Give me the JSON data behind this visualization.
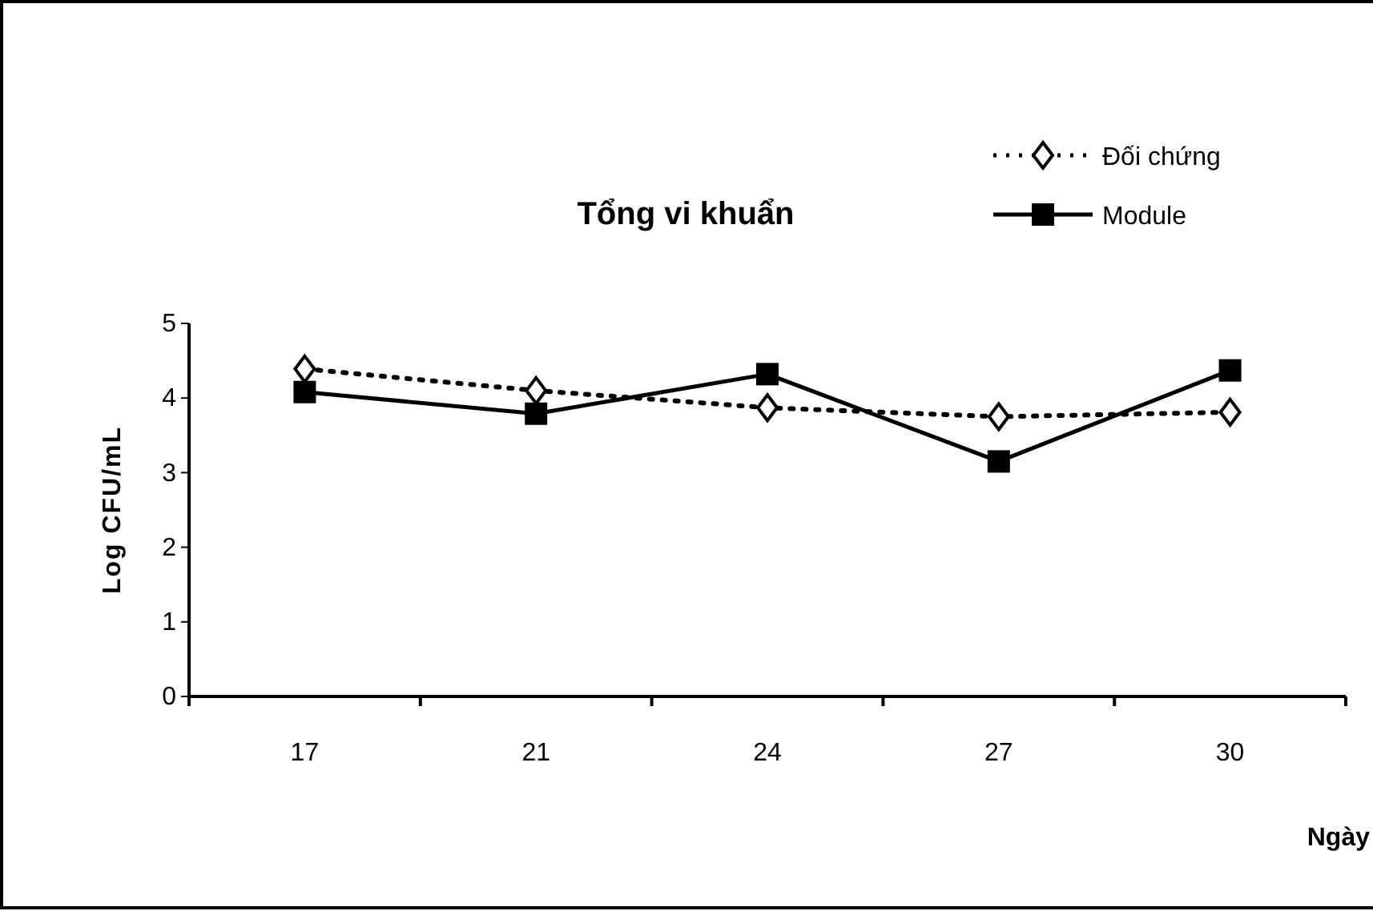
{
  "chart_data": {
    "type": "line",
    "title": "Tổng vi khuẩn",
    "xlabel": "Ngày",
    "ylabel": "Log CFU/mL",
    "categories": [
      "17",
      "21",
      "24",
      "27",
      "30"
    ],
    "series": [
      {
        "name": "Đối chứng",
        "color": "#000000",
        "marker": "diamond",
        "line_style": "dotted",
        "values": [
          4.39,
          4.1,
          3.87,
          3.75,
          3.81
        ]
      },
      {
        "name": "Module",
        "color": "#000000",
        "marker": "square",
        "line_style": "solid",
        "values": [
          4.08,
          3.79,
          4.32,
          3.15,
          4.37
        ]
      }
    ],
    "ylim": [
      0,
      5
    ],
    "yticks": [
      0,
      1,
      2,
      3,
      4,
      5
    ],
    "grid": false,
    "legend": "top right"
  }
}
